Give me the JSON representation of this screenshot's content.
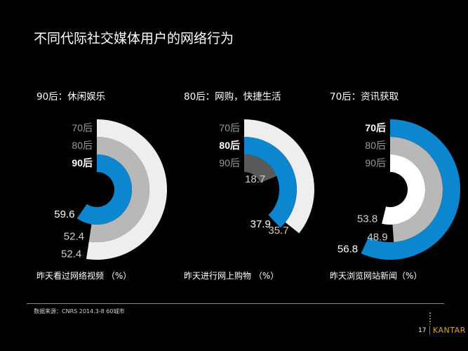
{
  "page": {
    "title": "不同代际社交媒体用户的网络行为",
    "source": "数据来源：CNRS 2014.3-8  60城市",
    "page_number": "17",
    "brand": "KANTAR"
  },
  "chart_data": [
    {
      "type": "radial-bar",
      "title": "90后：休闲娱乐",
      "xlabel": "昨天看过网络视频 （%）",
      "highlight": "90后",
      "series": [
        {
          "name": "70后",
          "value": 52.4,
          "label": "52.4",
          "color": "#eeeeee"
        },
        {
          "name": "80后",
          "value": 52.4,
          "label": "52.4",
          "color": "#b8b8b8"
        },
        {
          "name": "90后",
          "value": 59.6,
          "label": "59.6",
          "color": "#0d86d0"
        }
      ]
    },
    {
      "type": "radial-bar",
      "title": "80后：网购，快捷生活",
      "xlabel": "昨天进行网上购物 （%）",
      "highlight": "80后",
      "series": [
        {
          "name": "70后",
          "value": 35.7,
          "label": "35.7",
          "color": "#eeeeee"
        },
        {
          "name": "80后",
          "value": 37.9,
          "label": "37.9",
          "color": "#0d86d0"
        },
        {
          "name": "90后",
          "value": 18.7,
          "label": "18.7",
          "color": "#595959"
        }
      ]
    },
    {
      "type": "radial-bar",
      "title": "70后：资讯获取",
      "xlabel": "昨天浏览网站新闻（%）",
      "highlight": "70后",
      "series": [
        {
          "name": "70后",
          "value": 56.8,
          "label": "56.8",
          "color": "#0d86d0"
        },
        {
          "name": "80后",
          "value": 48.9,
          "label": "48.9",
          "color": "#b8b8b8"
        },
        {
          "name": "90后",
          "value": 53.8,
          "label": "53.8",
          "color": "#ffffff"
        }
      ]
    }
  ]
}
